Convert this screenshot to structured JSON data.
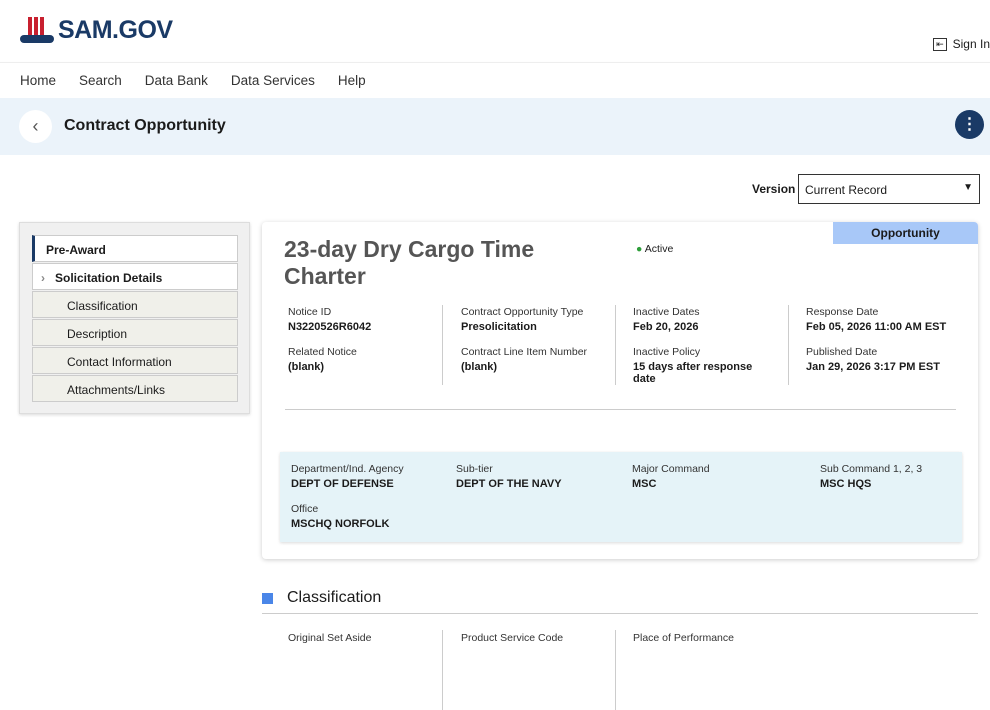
{
  "header": {
    "logo": "SAM.GOV",
    "sign_in": "Sign In"
  },
  "nav": [
    "Home",
    "Search",
    "Data Bank",
    "Data Services",
    "Help"
  ],
  "page": {
    "title": "Contract Opportunity"
  },
  "version": {
    "label": "Version",
    "selected": "Current Record"
  },
  "sidebar": {
    "items": [
      "Pre-Award",
      "Solicitation Details",
      "Classification",
      "Description",
      "Contact Information",
      "Attachments/Links"
    ]
  },
  "opportunity": {
    "tag": "Opportunity",
    "title": "23-day Dry Cargo Time Charter",
    "status": "Active",
    "status_color": "#2e9e3a",
    "fields": [
      {
        "label": "Notice ID",
        "value": "N3220526R6042"
      },
      {
        "label": "Related Notice",
        "value": "(blank)"
      },
      {
        "label": "Contract Opportunity Type",
        "value": "Presolicitation"
      },
      {
        "label": "Contract Line Item Number",
        "value": "(blank)"
      },
      {
        "label": "Inactive Dates",
        "value": "Feb 20, 2026"
      },
      {
        "label": "Inactive Policy",
        "value": "15 days after response date"
      },
      {
        "label": "Response Date",
        "value": "Feb 05, 2026 11:00 AM EST"
      },
      {
        "label": "Published Date",
        "value": "Jan 29, 2026 3:17 PM EST"
      }
    ],
    "org": [
      {
        "label": "Department/Ind. Agency",
        "value": "DEPT OF DEFENSE"
      },
      {
        "label": "Sub-tier",
        "value": "DEPT OF THE NAVY"
      },
      {
        "label": "Major Command",
        "value": "MSC"
      },
      {
        "label": "Sub Command 1, 2, 3",
        "value": "MSC HQS"
      },
      {
        "label": "Office",
        "value": "MSCHQ NORFOLK"
      }
    ]
  },
  "classification": {
    "heading": "Classification",
    "labels": [
      "Original Set Aside",
      "Product Service Code",
      "Place of Performance"
    ]
  }
}
